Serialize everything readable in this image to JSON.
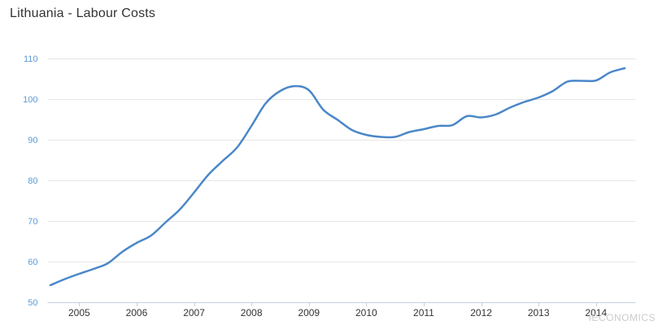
{
  "header": {
    "title": "Lithuania - Labour Costs"
  },
  "watermark": {
    "label": "IECONOMICS"
  },
  "chart_data": {
    "type": "line",
    "title": "Lithuania - Labour Costs",
    "xlabel": "",
    "ylabel": "",
    "xlim": [
      2004.45,
      2014.69
    ],
    "ylim": [
      50,
      110
    ],
    "grid": "horizontal",
    "legend": "none",
    "y_ticks": [
      50,
      60,
      70,
      80,
      90,
      100,
      110
    ],
    "x_ticks": [
      2005,
      2006,
      2007,
      2008,
      2009,
      2010,
      2011,
      2012,
      2013,
      2014
    ],
    "x_tick_labels": [
      "2005",
      "2006",
      "2007",
      "2008",
      "2009",
      "2010",
      "2011",
      "2012",
      "2013",
      "2014"
    ],
    "series": [
      {
        "name": "Labour Costs",
        "color": "#4a87c8",
        "x": [
          2004.5,
          2004.75,
          2005.0,
          2005.25,
          2005.5,
          2005.75,
          2006.0,
          2006.25,
          2006.5,
          2006.75,
          2007.0,
          2007.25,
          2007.5,
          2007.75,
          2008.0,
          2008.25,
          2008.5,
          2008.75,
          2009.0,
          2009.25,
          2009.5,
          2009.75,
          2010.0,
          2010.25,
          2010.5,
          2010.75,
          2011.0,
          2011.25,
          2011.5,
          2011.75,
          2012.0,
          2012.25,
          2012.5,
          2012.75,
          2013.0,
          2013.25,
          2013.5,
          2013.75,
          2014.0,
          2014.25,
          2014.5
        ],
        "values": [
          54.2,
          55.7,
          57.0,
          58.2,
          59.6,
          62.4,
          64.6,
          66.4,
          69.6,
          72.8,
          77.0,
          81.4,
          84.8,
          88.1,
          93.4,
          99.0,
          102.0,
          103.2,
          102.2,
          97.4,
          94.9,
          92.4,
          91.2,
          90.7,
          90.7,
          91.9,
          92.6,
          93.4,
          93.6,
          95.8,
          95.5,
          96.2,
          97.9,
          99.3,
          100.4,
          102.0,
          104.3,
          104.5,
          104.6,
          106.6,
          107.6
        ]
      }
    ],
    "colors": {
      "line": "#4a87c8",
      "y_label": "#5b9bd5",
      "x_label": "#333333",
      "grid": "#e6e6e6",
      "axis": "#c0d0e0",
      "watermark": "#cccccc",
      "title": "#333333"
    }
  }
}
